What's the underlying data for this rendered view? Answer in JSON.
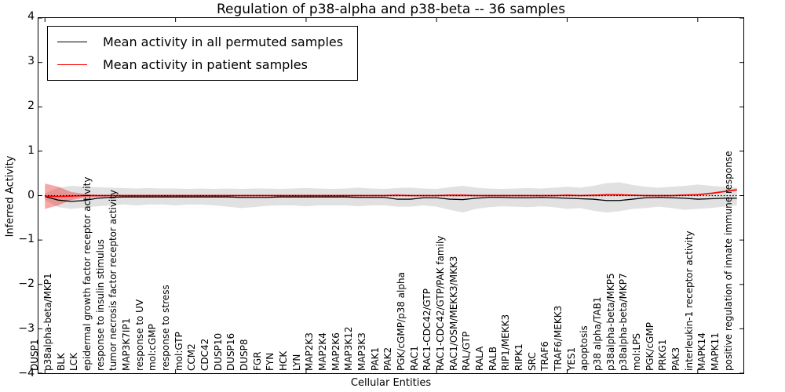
{
  "title": "Regulation of p38-alpha and p38-beta -- 36 samples",
  "axes": {
    "ylabel": "Inferred Activity",
    "xlabel": "Cellular Entities",
    "yticks": [
      "4",
      "3",
      "2",
      "1",
      "0",
      "−1",
      "−2",
      "−3",
      "−4"
    ]
  },
  "colors": {
    "permuted_line": "#000000",
    "patient_line": "#ff0000",
    "permuted_band": "#aaaaaa",
    "patient_band": "#ee2222"
  },
  "chart_data": {
    "type": "line",
    "title": "Regulation of p38-alpha and p38-beta -- 36 samples",
    "xlabel": "Cellular Entities",
    "ylabel": "Inferred Activity",
    "ylim": [
      -4,
      4
    ],
    "grid": false,
    "legend_position": "upper left",
    "xtick_every": 10,
    "categories": [
      "DUSP1",
      "p38alpha-beta/MKP1",
      "BLK",
      "LCK",
      "epidermal growth factor receptor activity",
      "response to insulin stimulus",
      "tumor necrosis factor receptor activity",
      "MAP3K7IP1",
      "response to UV",
      "mol:cGMP",
      "response to stress",
      "mol:GTP",
      "CCM2",
      "CDC42",
      "DUSP10",
      "DUSP16",
      "DUSP8",
      "FGR",
      "FYN",
      "HCK",
      "LYN",
      "MAP2K3",
      "MAP2K4",
      "MAP2K6",
      "MAP3K12",
      "MAP3K3",
      "PAK1",
      "PAK2",
      "PGK/cGMP/p38 alpha",
      "RAC1",
      "RAC1-CDC42/GTP",
      "RAC1-CDC42/GTP/PAK family",
      "RAC1/OSM/MEKK3/MKK3",
      "RAL/GTP",
      "RALA",
      "RALB",
      "RIP1/MEKK3",
      "RIPK1",
      "SRC",
      "TRAF6",
      "TRAF6/MEKK3",
      "YES1",
      "apoptosis",
      "p38 alpha/TAB1",
      "p38alpha-beta/MKP5",
      "p38alpha-beta/MKP7",
      "mol:LPS",
      "PGK/cGMP",
      "PRKG1",
      "PAK3",
      "interleukin-1 receptor activity",
      "MAPK14",
      "MAPK11",
      "positive regulation of innate immune response"
    ],
    "series": [
      {
        "name": "Mean activity in all permuted samples",
        "color": "#000000",
        "values": [
          -0.02,
          -0.1,
          -0.13,
          -0.11,
          -0.06,
          -0.04,
          -0.03,
          -0.03,
          -0.03,
          -0.03,
          -0.03,
          -0.03,
          -0.03,
          -0.03,
          -0.03,
          -0.04,
          -0.04,
          -0.04,
          -0.03,
          -0.03,
          -0.03,
          -0.03,
          -0.03,
          -0.03,
          -0.04,
          -0.04,
          -0.04,
          -0.08,
          -0.08,
          -0.05,
          -0.05,
          -0.08,
          -0.09,
          -0.06,
          -0.04,
          -0.04,
          -0.05,
          -0.05,
          -0.04,
          -0.05,
          -0.06,
          -0.07,
          -0.08,
          -0.11,
          -0.11,
          -0.08,
          -0.05,
          -0.04,
          -0.05,
          -0.06,
          -0.08,
          -0.07,
          -0.06,
          -0.06
        ]
      },
      {
        "name": "Mean activity in patient samples",
        "color": "#ff0000",
        "values": [
          -0.01,
          -0.02,
          -0.01,
          0,
          0,
          0,
          0,
          0,
          0,
          0,
          0,
          0,
          0,
          0,
          0,
          0,
          0,
          0,
          0,
          0,
          0,
          0,
          0,
          0,
          0,
          0,
          0,
          0.01,
          0,
          0,
          0,
          0.01,
          0.01,
          0,
          0,
          0,
          0,
          0,
          0,
          0,
          0.01,
          0,
          0.01,
          0.02,
          0.02,
          0.01,
          0,
          0,
          0,
          0.01,
          0.02,
          0.05,
          0.09,
          0.13
        ]
      }
    ],
    "bands": [
      {
        "name": "permuted-range",
        "color": "#aaaaaa",
        "opacity": 0.35,
        "upper": [
          0.05,
          0.18,
          0.22,
          0.2,
          0.19,
          0.18,
          0.17,
          0.16,
          0.17,
          0.16,
          0.16,
          0.15,
          0.16,
          0.15,
          0.16,
          0.15,
          0.16,
          0.16,
          0.15,
          0.16,
          0.17,
          0.16,
          0.15,
          0.16,
          0.18,
          0.16,
          0.15,
          0.17,
          0.18,
          0.16,
          0.15,
          0.19,
          0.22,
          0.18,
          0.16,
          0.15,
          0.16,
          0.17,
          0.16,
          0.18,
          0.2,
          0.18,
          0.22,
          0.28,
          0.3,
          0.24,
          0.2,
          0.18,
          0.2,
          0.22,
          0.25,
          0.22,
          0.2,
          0.18
        ],
        "lower": [
          -0.1,
          -0.26,
          -0.3,
          -0.27,
          -0.24,
          -0.22,
          -0.2,
          -0.22,
          -0.2,
          -0.2,
          -0.22,
          -0.2,
          -0.2,
          -0.22,
          -0.25,
          -0.28,
          -0.26,
          -0.23,
          -0.22,
          -0.22,
          -0.24,
          -0.22,
          -0.22,
          -0.22,
          -0.24,
          -0.22,
          -0.22,
          -0.25,
          -0.25,
          -0.22,
          -0.25,
          -0.32,
          -0.38,
          -0.3,
          -0.26,
          -0.24,
          -0.25,
          -0.26,
          -0.24,
          -0.26,
          -0.3,
          -0.28,
          -0.34,
          -0.38,
          -0.35,
          -0.3,
          -0.28,
          -0.25,
          -0.28,
          -0.32,
          -0.3,
          -0.28,
          -0.25,
          -0.22
        ]
      },
      {
        "name": "patient-range",
        "color": "#ee2222",
        "opacity": 0.4,
        "upper": [
          0.27,
          0.2,
          0.08,
          0.04,
          0.02,
          0.02,
          0.02,
          0.02,
          0.02,
          0.02,
          0.02,
          0.02,
          0.02,
          0.02,
          0.02,
          0.02,
          0.02,
          0.02,
          0.02,
          0.02,
          0.02,
          0.02,
          0.02,
          0.02,
          0.02,
          0.02,
          0.02,
          0.02,
          0.02,
          0.02,
          0.02,
          0.02,
          0.02,
          0.02,
          0.02,
          0.02,
          0.02,
          0.02,
          0.02,
          0.02,
          0.02,
          0.02,
          0.02,
          0.03,
          0.03,
          0.02,
          0.02,
          0.02,
          0.02,
          0.03,
          0.04,
          0.07,
          0.11,
          0.16
        ],
        "lower": [
          -0.3,
          -0.22,
          -0.1,
          -0.05,
          -0.03,
          -0.02,
          -0.02,
          -0.02,
          -0.02,
          -0.02,
          -0.02,
          -0.02,
          -0.02,
          -0.02,
          -0.02,
          -0.02,
          -0.02,
          -0.02,
          -0.02,
          -0.02,
          -0.02,
          -0.02,
          -0.02,
          -0.02,
          -0.02,
          -0.02,
          -0.02,
          -0.02,
          -0.02,
          -0.02,
          -0.02,
          -0.02,
          -0.02,
          -0.02,
          -0.02,
          -0.02,
          -0.02,
          -0.02,
          -0.02,
          -0.02,
          -0.02,
          -0.02,
          -0.02,
          -0.01,
          -0.01,
          -0.01,
          -0.02,
          -0.02,
          -0.02,
          -0.01,
          0.0,
          0.03,
          0.07,
          0.11
        ]
      }
    ],
    "zero_line": {
      "style": "dotted",
      "color": "#000000",
      "y": 0
    }
  }
}
